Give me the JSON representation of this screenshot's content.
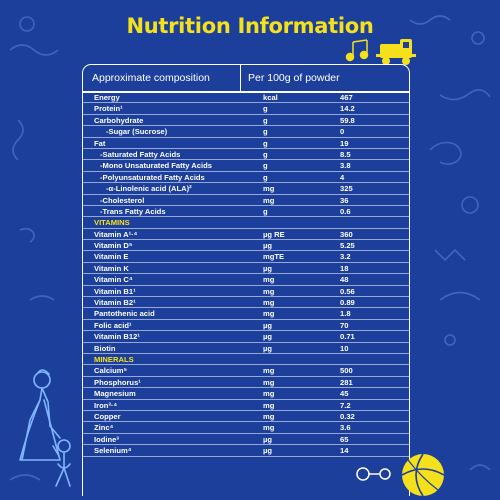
{
  "title": "Nutrition Information",
  "table": {
    "header": {
      "composition": "Approximate composition",
      "per": "Per 100g of powder"
    },
    "rows": [
      {
        "name": "Energy",
        "unit": "kcal",
        "value": "467",
        "kind": "item"
      },
      {
        "name": "Protein¹",
        "unit": "g",
        "value": "14.2",
        "kind": "item"
      },
      {
        "name": "Carbohydrate",
        "unit": "g",
        "value": "59.8",
        "kind": "item"
      },
      {
        "name": "-Sugar (Sucrose)",
        "unit": "g",
        "value": "0",
        "kind": "sub2"
      },
      {
        "name": "Fat",
        "unit": "g",
        "value": "19",
        "kind": "item"
      },
      {
        "name": "-Saturated Fatty Acids",
        "unit": "g",
        "value": "8.5",
        "kind": "sub"
      },
      {
        "name": "-Mono Unsaturated Fatty Acids",
        "unit": "g",
        "value": "3.8",
        "kind": "sub"
      },
      {
        "name": "-Polyunsaturated Fatty Acids",
        "unit": "g",
        "value": "4",
        "kind": "sub"
      },
      {
        "name": "-α-Linolenic acid (ALA)²",
        "unit": "mg",
        "value": "325",
        "kind": "sub2"
      },
      {
        "name": "-Cholesterol",
        "unit": "mg",
        "value": "36",
        "kind": "sub"
      },
      {
        "name": "-Trans Fatty Acids",
        "unit": "g",
        "value": "0.6",
        "kind": "sub"
      },
      {
        "name": "VITAMINS",
        "unit": "",
        "value": "",
        "kind": "section"
      },
      {
        "name": "Vitamin A¹·⁴",
        "unit": "µg RE",
        "value": "360",
        "kind": "item"
      },
      {
        "name": "Vitamin D⁵",
        "unit": "µg",
        "value": "5.25",
        "kind": "item"
      },
      {
        "name": "Vitamin E",
        "unit": "mgTE",
        "value": "3.2",
        "kind": "item"
      },
      {
        "name": "Vitamin K",
        "unit": "µg",
        "value": "18",
        "kind": "item"
      },
      {
        "name": "Vitamin C⁴",
        "unit": "mg",
        "value": "48",
        "kind": "item"
      },
      {
        "name": "Vitamin B1¹",
        "unit": "mg",
        "value": "0.56",
        "kind": "item"
      },
      {
        "name": "Vitamin B2¹",
        "unit": "mg",
        "value": "0.89",
        "kind": "item"
      },
      {
        "name": "Pantothenic acid",
        "unit": "mg",
        "value": "1.8",
        "kind": "item"
      },
      {
        "name": "Folic acid¹",
        "unit": "µg",
        "value": "70",
        "kind": "item"
      },
      {
        "name": "Vitamin B12¹",
        "unit": "µg",
        "value": "0.71",
        "kind": "item"
      },
      {
        "name": "Biotin",
        "unit": "µg",
        "value": "10",
        "kind": "item"
      },
      {
        "name": "MINERALS",
        "unit": "",
        "value": "",
        "kind": "section"
      },
      {
        "name": "Calcium⁵",
        "unit": "mg",
        "value": "500",
        "kind": "item"
      },
      {
        "name": "Phosphorus¹",
        "unit": "mg",
        "value": "281",
        "kind": "item"
      },
      {
        "name": "Magnesium",
        "unit": "mg",
        "value": "45",
        "kind": "item"
      },
      {
        "name": "Iron³·⁴",
        "unit": "mg",
        "value": "7.2",
        "kind": "item"
      },
      {
        "name": "Copper",
        "unit": "mg",
        "value": "0.32",
        "kind": "item"
      },
      {
        "name": "Zinc⁴",
        "unit": "mg",
        "value": "3.6",
        "kind": "item"
      },
      {
        "name": "Iodine³",
        "unit": "µg",
        "value": "65",
        "kind": "item"
      },
      {
        "name": "Selenium⁴",
        "unit": "µg",
        "value": "14",
        "kind": "item"
      }
    ]
  },
  "colors": {
    "background": "#1d3f9c",
    "title": "#f5e11b",
    "section": "#f5e11b",
    "text": "#ffffff"
  },
  "icons": [
    "music-notes-icon",
    "toy-train-icon",
    "mother-child-illustration",
    "beach-ball-icon",
    "rattle-icon",
    "doodle-decoration"
  ]
}
